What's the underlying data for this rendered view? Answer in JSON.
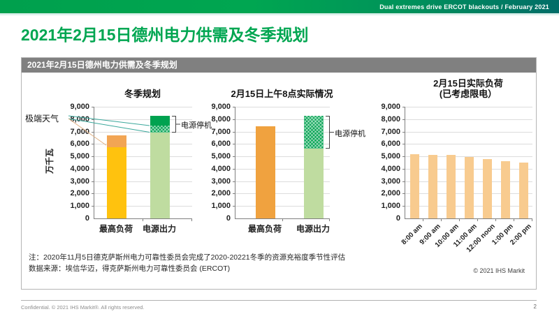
{
  "banner": {
    "text": "Dual extremes drive ERCOT blackouts / February 2021"
  },
  "page_title": "2021年2月15日德州电力供需及冬季规划",
  "panel": {
    "header": "2021年2月15日德州电力供需及冬季规划",
    "note_line1": "注：2020年11月5日德克萨斯州电力可靠性委员会完成了2020-20221冬季的资源充裕度季节性评估",
    "note_line2": "数据来源：埃信华迈，得克萨斯州电力可靠性委员会 (ERCOT)",
    "copyright": "© 2021 IHS Markit"
  },
  "footer": {
    "text": "Confidential. © 2021 IHS Markit®. All rights reserved.",
    "page": "2"
  },
  "colors": {
    "brand_green": "#00a651",
    "banner_teal": "#006b66",
    "header_gray": "#808080",
    "yellow": "#ffc20e",
    "orange_cap": "#f2a554",
    "orange": "#f0a23f",
    "light_green": "#bfdca0",
    "dark_green": "#00a250",
    "pale_orange": "#f8cb8f",
    "teal_line": "#3aa79b",
    "tan_line": "#e0b184"
  },
  "chart_data": [
    {
      "type": "bar",
      "title": "冬季规划",
      "ylabel": "万千瓦",
      "ylim": [
        0,
        9000
      ],
      "ytick_step": 1000,
      "grid": true,
      "categories": [
        "最高负荷",
        "电源出力"
      ],
      "bars": [
        {
          "label": "最高负荷",
          "segments": [
            {
              "to": 5750,
              "color": "#ffc20e"
            },
            {
              "to": 6700,
              "color": "#f2a554"
            }
          ]
        },
        {
          "label": "电源出力",
          "segments": [
            {
              "to": 6900,
              "color": "#bfdca0"
            },
            {
              "to": 7500,
              "color": "hatch"
            },
            {
              "to": 8250,
              "color": "#00a250"
            }
          ]
        }
      ],
      "bracket": {
        "from": 6900,
        "to": 8250,
        "label": "电源停机"
      },
      "annotation": {
        "label": "极端天气",
        "lines": [
          {
            "bar": 1,
            "value": 7480,
            "color": "#3aa79b"
          },
          {
            "bar": 1,
            "value": 6950,
            "color": "#3aa79b"
          },
          {
            "bar": 0,
            "value": 5900,
            "color": "#e0b184"
          }
        ]
      }
    },
    {
      "type": "bar",
      "title": "2月15日上午8点实际情况",
      "ylim": [
        0,
        9000
      ],
      "ytick_step": 1000,
      "grid": true,
      "categories": [
        "最高负荷",
        "电源出力"
      ],
      "bars": [
        {
          "label": "最高负荷",
          "segments": [
            {
              "to": 7450,
              "color": "#f0a23f"
            }
          ]
        },
        {
          "label": "电源出力",
          "segments": [
            {
              "to": 5600,
              "color": "#bfdca0"
            },
            {
              "to": 8250,
              "color": "hatch"
            }
          ]
        }
      ],
      "bracket": {
        "from": 5600,
        "to": 8250,
        "label": "电源停机"
      }
    },
    {
      "type": "bar",
      "title": [
        "2月15日实际负荷",
        "(已考虑限电）"
      ],
      "ylim": [
        0,
        9000
      ],
      "ytick_step": 1000,
      "grid": true,
      "categories": [
        "8:00 am",
        "9:00 am",
        "10:00 am",
        "11:00 am",
        "12:00 noon",
        "1:00 pm",
        "2:00 pm"
      ],
      "values": [
        5200,
        5100,
        5100,
        4950,
        4800,
        4600,
        4500
      ],
      "bar_color": "#f8cb8f",
      "xlabel_rotate": true
    }
  ]
}
